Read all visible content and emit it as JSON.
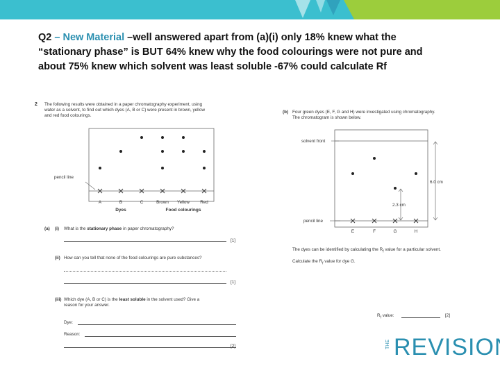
{
  "colors": {
    "banner_teal": "#3bbfcf",
    "banner_green": "#9ccd3c",
    "highlight": "#2a8fb0",
    "logo": "#2a8fb0"
  },
  "heading": {
    "q_label": "Q2",
    "dash": " – ",
    "highlight": "New Material",
    "rest_line1": " –well answered apart from (a)(i) only 18% knew what the",
    "line2": "“stationary phase” is  BUT 64% knew why the food colourings were not pure and",
    "line3": "about 75% knew which solvent was least soluble  -67% could calculate Rf"
  },
  "question": {
    "number": "2",
    "intro_1": "The following results were obtained in a paper chromatography experiment, using",
    "intro_2": "water as a solvent, to find out which dyes (A, B or C) were present in brown, yellow",
    "intro_3": "and red food colourings.",
    "chrom1": {
      "pencil_line_label": "pencil line",
      "lanes": [
        "A",
        "B",
        "C",
        "Brown",
        "Yellow",
        "Red"
      ],
      "group_dyes": "Dyes",
      "group_food": "Food colourings"
    },
    "part_a_label": "(a)",
    "part_i_label": "(i)",
    "part_i_pre": "What is the ",
    "part_i_bold": "stationary phase",
    "part_i_post": " in paper chromatography?",
    "mark_1": "[1]",
    "part_ii_label": "(ii)",
    "part_ii_text": "How can you tell that none of the food colourings are pure substances?",
    "mark_1b": "[1]",
    "part_iii_label": "(iii)",
    "part_iii_pre": "Which dye (A, B or C) is the ",
    "part_iii_bold": "least soluble",
    "part_iii_post": " in the solvent used? Give a",
    "part_iii_line2": "reason for your answer.",
    "dye_label": "Dye:",
    "reason_label": "Reason:",
    "mark_2": "[2]",
    "part_b_label": "(b)",
    "part_b_line1": "Four green dyes (E, F, G and H) were investigated using chromatography.",
    "part_b_line2": "The chromatogram is shown below.",
    "chrom2": {
      "solvent_front_label": "solvent front",
      "pencil_line_label": "pencil line",
      "lanes": [
        "E",
        "F",
        "G",
        "H"
      ],
      "dist_total": "6.0 cm",
      "dist_g": "2.3 cm"
    },
    "rf_text_1": "The dyes can be identified by calculating the R",
    "rf_sub": "f",
    "rf_text_1_end": " value for a particular solvent.",
    "rf_text_2": "Calculate the R",
    "rf_text_2_end": " value for dye G.",
    "rf_value_label": "R",
    "rf_value_label_end": " value:",
    "mark_2b": "[2]"
  },
  "logo": {
    "the": "THE",
    "word": "REVISION"
  }
}
